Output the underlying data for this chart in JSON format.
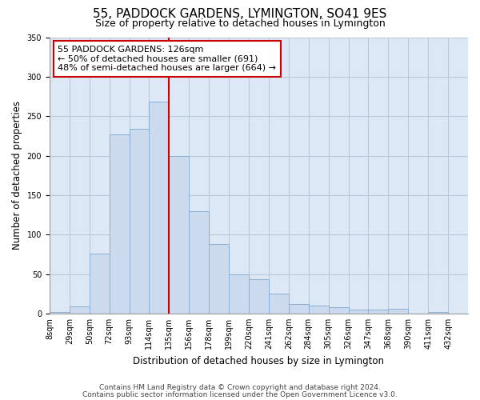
{
  "title": "55, PADDOCK GARDENS, LYMINGTON, SO41 9ES",
  "subtitle": "Size of property relative to detached houses in Lymington",
  "xlabel": "Distribution of detached houses by size in Lymington",
  "ylabel": "Number of detached properties",
  "bar_labels": [
    "8sqm",
    "29sqm",
    "50sqm",
    "72sqm",
    "93sqm",
    "114sqm",
    "135sqm",
    "156sqm",
    "178sqm",
    "199sqm",
    "220sqm",
    "241sqm",
    "262sqm",
    "284sqm",
    "305sqm",
    "326sqm",
    "347sqm",
    "368sqm",
    "390sqm",
    "411sqm",
    "432sqm"
  ],
  "bar_values": [
    2,
    9,
    76,
    227,
    234,
    268,
    200,
    130,
    88,
    50,
    44,
    25,
    12,
    10,
    8,
    5,
    5,
    6,
    0,
    2,
    0
  ],
  "bar_color": "#ccdaee",
  "bar_edge_color": "#8aafd4",
  "vline_color": "#cc0000",
  "annotation_text": "55 PADDOCK GARDENS: 126sqm\n← 50% of detached houses are smaller (691)\n48% of semi-detached houses are larger (664) →",
  "annotation_box_edgecolor": "#cc0000",
  "annotation_box_facecolor": "#ffffff",
  "ylim": [
    0,
    350
  ],
  "yticks": [
    0,
    50,
    100,
    150,
    200,
    250,
    300,
    350
  ],
  "footer_line1": "Contains HM Land Registry data © Crown copyright and database right 2024.",
  "footer_line2": "Contains public sector information licensed under the Open Government Licence v3.0.",
  "background_color": "#ffffff",
  "plot_bg_color": "#dce8f5",
  "grid_color": "#b8c8d8",
  "title_fontsize": 11,
  "subtitle_fontsize": 9,
  "axis_label_fontsize": 8.5,
  "tick_fontsize": 7,
  "footer_fontsize": 6.5,
  "annotation_fontsize": 8
}
